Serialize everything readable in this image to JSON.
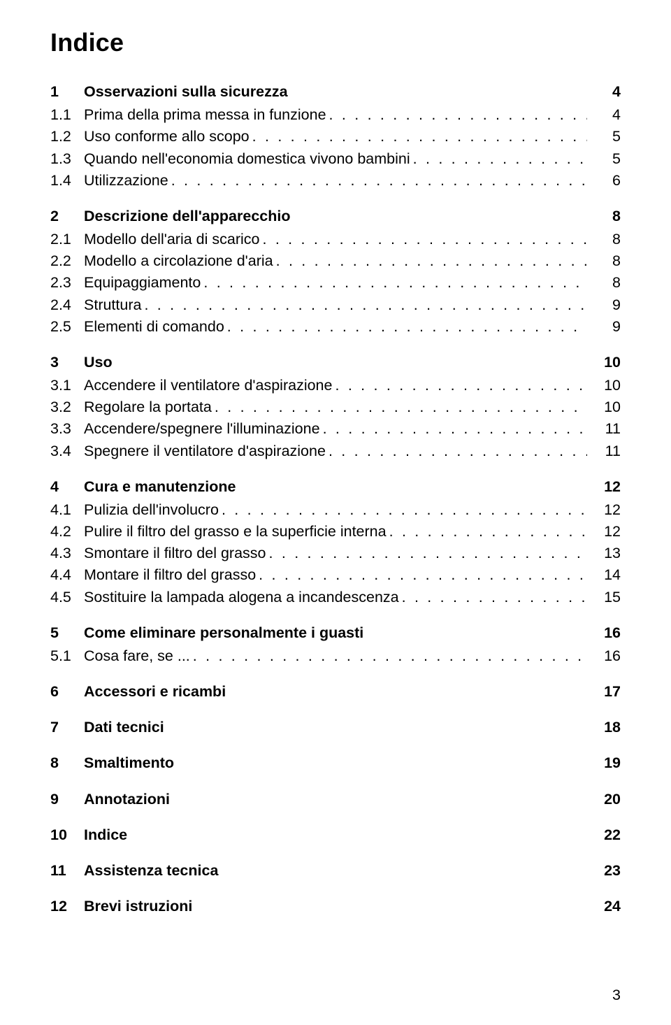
{
  "page": {
    "title": "Indice",
    "footerPageNumber": "3",
    "leaderDots": ". . . . . . . . . . . . . . . . . . . . . . . . . . . . . . . . . . . . . . . . . . . . . . . . . . . . . . . . . . . . . . . . . . . . . . . . . . . . . . . . . . . . . . . . . . . . . . . . . . . . . . . . . . . . . . . . . .",
    "sections": [
      {
        "num": "1",
        "title": "Osservazioni sulla sicurezza",
        "page": "4",
        "items": [
          {
            "num": "1.1",
            "title": "Prima della prima messa in funzione",
            "page": "4"
          },
          {
            "num": "1.2",
            "title": "Uso conforme allo scopo",
            "page": "5"
          },
          {
            "num": "1.3",
            "title": "Quando nell'economia domestica vivono bambini",
            "page": "5"
          },
          {
            "num": "1.4",
            "title": "Utilizzazione",
            "page": "6"
          }
        ]
      },
      {
        "num": "2",
        "title": "Descrizione dell'apparecchio",
        "page": "8",
        "items": [
          {
            "num": "2.1",
            "title": "Modello dell'aria di scarico",
            "page": "8"
          },
          {
            "num": "2.2",
            "title": "Modello a circolazione d'aria",
            "page": "8"
          },
          {
            "num": "2.3",
            "title": "Equipaggiamento",
            "page": "8"
          },
          {
            "num": "2.4",
            "title": "Struttura",
            "page": "9"
          },
          {
            "num": "2.5",
            "title": "Elementi di comando",
            "page": "9"
          }
        ]
      },
      {
        "num": "3",
        "title": "Uso",
        "page": "10",
        "items": [
          {
            "num": "3.1",
            "title": "Accendere il ventilatore d'aspirazione",
            "page": "10"
          },
          {
            "num": "3.2",
            "title": "Regolare la portata",
            "page": "10"
          },
          {
            "num": "3.3",
            "title": "Accendere/spegnere l'illuminazione",
            "page": "11"
          },
          {
            "num": "3.4",
            "title": "Spegnere il ventilatore d'aspirazione",
            "page": "11"
          }
        ]
      },
      {
        "num": "4",
        "title": "Cura e manutenzione",
        "page": "12",
        "items": [
          {
            "num": "4.1",
            "title": "Pulizia dell'involucro",
            "page": "12"
          },
          {
            "num": "4.2",
            "title": "Pulire il filtro del grasso e la superficie interna",
            "page": "12"
          },
          {
            "num": "4.3",
            "title": "Smontare il filtro del grasso",
            "page": "13"
          },
          {
            "num": "4.4",
            "title": "Montare il filtro del grasso",
            "page": "14"
          },
          {
            "num": "4.5",
            "title": "Sostituire la lampada alogena a incandescenza",
            "page": "15"
          }
        ]
      },
      {
        "num": "5",
        "title": "Come eliminare personalmente i guasti",
        "page": "16",
        "items": [
          {
            "num": "5.1",
            "title": "Cosa fare, se ...",
            "page": "16"
          }
        ]
      },
      {
        "num": "6",
        "title": "Accessori e ricambi",
        "page": "17",
        "items": []
      },
      {
        "num": "7",
        "title": "Dati tecnici",
        "page": "18",
        "items": []
      },
      {
        "num": "8",
        "title": "Smaltimento",
        "page": "19",
        "items": []
      },
      {
        "num": "9",
        "title": "Annotazioni",
        "page": "20",
        "items": []
      },
      {
        "num": "10",
        "title": "Indice",
        "page": "22",
        "items": []
      },
      {
        "num": "11",
        "title": "Assistenza tecnica",
        "page": "23",
        "items": []
      },
      {
        "num": "12",
        "title": "Brevi istruzioni",
        "page": "24",
        "items": []
      }
    ]
  }
}
